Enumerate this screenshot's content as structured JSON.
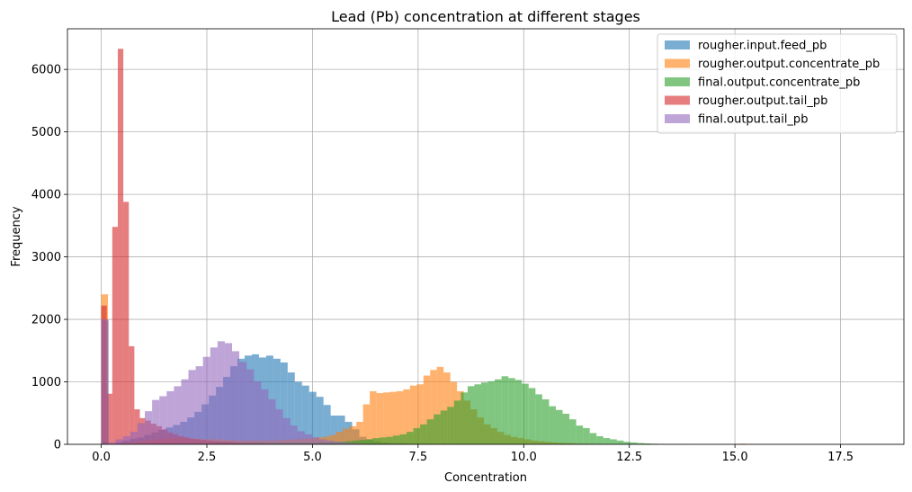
{
  "chart_data": {
    "type": "histogram",
    "title": "Lead (Pb) concentration at different stages",
    "xlabel": "Concentration",
    "ylabel": "Frequency",
    "xlim": [
      -0.8,
      19.0
    ],
    "ylim": [
      0,
      6650
    ],
    "xticks": [
      0.0,
      2.5,
      5.0,
      7.5,
      10.0,
      12.5,
      15.0,
      17.5
    ],
    "xtick_labels": [
      "0.0",
      "2.5",
      "5.0",
      "7.5",
      "10.0",
      "12.5",
      "15.0",
      "17.5"
    ],
    "yticks": [
      0,
      1000,
      2000,
      3000,
      4000,
      5000,
      6000
    ],
    "ytick_labels": [
      "0",
      "1000",
      "2000",
      "3000",
      "4000",
      "5000",
      "6000"
    ],
    "grid": true,
    "legend_position": "top-right",
    "series": [
      {
        "name": "rougher.input.feed_pb",
        "color": "#1f77b4",
        "alpha": 0.6,
        "bin_start": 0.0,
        "bin_width": 0.1697,
        "counts": [
          1980,
          0,
          30,
          60,
          90,
          110,
          150,
          190,
          230,
          270,
          310,
          360,
          430,
          520,
          640,
          780,
          920,
          1080,
          1250,
          1370,
          1420,
          1440,
          1390,
          1420,
          1370,
          1310,
          1150,
          1000,
          940,
          840,
          760,
          630,
          460,
          460,
          360,
          240,
          120,
          80,
          50,
          30,
          20,
          15,
          10,
          5,
          0
        ]
      },
      {
        "name": "rougher.output.concentrate_pb",
        "color": "#ff7f0e",
        "alpha": 0.6,
        "bin_start": 0.0,
        "bin_width": 0.1589,
        "counts": [
          2400,
          10,
          10,
          20,
          30,
          40,
          60,
          70,
          80,
          90,
          100,
          100,
          100,
          90,
          90,
          80,
          80,
          80,
          70,
          70,
          60,
          60,
          60,
          60,
          60,
          60,
          70,
          70,
          80,
          80,
          90,
          100,
          110,
          120,
          150,
          200,
          250,
          290,
          360,
          640,
          850,
          820,
          830,
          840,
          850,
          880,
          940,
          960,
          1100,
          1190,
          1240,
          1150,
          1000,
          850,
          700,
          560,
          430,
          320,
          260,
          200,
          150,
          120,
          100,
          80,
          60,
          50,
          40,
          30,
          25,
          20,
          15,
          10,
          8,
          5,
          4,
          3,
          3,
          2,
          2,
          1,
          1,
          1,
          1,
          1,
          1,
          1,
          1,
          1,
          1,
          1,
          1,
          1,
          1,
          1,
          1,
          10,
          0
        ]
      },
      {
        "name": "final.output.concentrate_pb",
        "color": "#2ca02c",
        "alpha": 0.6,
        "bin_start": 0.0,
        "bin_width": 0.1606,
        "counts": [
          40,
          0,
          0,
          5,
          5,
          10,
          10,
          10,
          15,
          15,
          15,
          20,
          20,
          20,
          20,
          20,
          20,
          25,
          25,
          25,
          25,
          25,
          25,
          25,
          25,
          25,
          25,
          25,
          25,
          25,
          25,
          25,
          30,
          30,
          35,
          40,
          50,
          60,
          70,
          80,
          100,
          110,
          120,
          140,
          160,
          200,
          260,
          320,
          400,
          480,
          540,
          600,
          700,
          830,
          930,
          960,
          990,
          1010,
          1040,
          1090,
          1060,
          1030,
          970,
          900,
          800,
          720,
          610,
          550,
          490,
          400,
          300,
          260,
          180,
          130,
          100,
          80,
          60,
          40,
          30,
          20,
          15,
          10,
          8,
          6,
          5,
          4,
          3,
          2,
          1,
          1,
          1,
          1,
          0
        ]
      },
      {
        "name": "rougher.output.tail_pb",
        "color": "#d62728",
        "alpha": 0.6,
        "bin_start": 0.0,
        "bin_width": 0.1306,
        "counts": [
          2220,
          810,
          3480,
          6330,
          3880,
          1570,
          560,
          420,
          380,
          330,
          290,
          240,
          190,
          160,
          130,
          110,
          90,
          80,
          70,
          60,
          50,
          45,
          40,
          35,
          30,
          25,
          20,
          20,
          15,
          15,
          10,
          10,
          10,
          10,
          10,
          10,
          10,
          10,
          10,
          5,
          5,
          5,
          5,
          0
        ]
      },
      {
        "name": "final.output.tail_pb",
        "color": "#9467bd",
        "alpha": 0.6,
        "bin_start": 0.0,
        "bin_width": 0.172,
        "counts": [
          2000,
          30,
          80,
          130,
          200,
          340,
          530,
          710,
          770,
          850,
          930,
          1040,
          1190,
          1250,
          1400,
          1550,
          1650,
          1620,
          1490,
          1320,
          1200,
          1010,
          880,
          720,
          560,
          420,
          300,
          210,
          160,
          110,
          80,
          60,
          40,
          30,
          20,
          10,
          5,
          0
        ]
      }
    ]
  }
}
